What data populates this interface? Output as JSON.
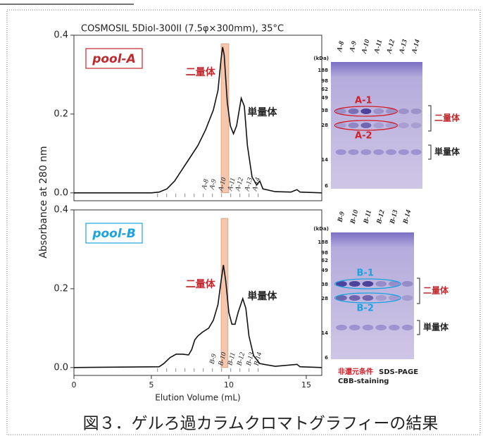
{
  "chart_data": [
    {
      "type": "line",
      "title": "COSMOSIL 5Diol-300II (7.5φ×300mm), 35°C",
      "ylabel": "Absorbance at 280 nm",
      "panel_label": "pool-A",
      "panel_color": "#c0282d",
      "xlim": [
        0,
        16
      ],
      "ylim": [
        -0.02,
        0.4
      ],
      "yticks": [
        {
          "value": 0,
          "label": "0.0"
        },
        0.2,
        0.4
      ],
      "x": [
        0,
        5,
        5.5,
        6,
        6.5,
        7,
        7.5,
        8,
        8.5,
        9,
        9.3,
        9.5,
        9.6,
        9.7,
        9.9,
        10.1,
        10.3,
        10.5,
        10.8,
        11.0,
        11.2,
        11.5,
        11.8,
        12.0,
        12.2,
        13,
        14,
        14.4,
        14.6,
        16
      ],
      "values": [
        0,
        0,
        0.002,
        0.01,
        0.03,
        0.06,
        0.09,
        0.12,
        0.16,
        0.21,
        0.26,
        0.34,
        0.37,
        0.35,
        0.23,
        0.17,
        0.15,
        0.17,
        0.24,
        0.22,
        0.12,
        0.04,
        0.02,
        0.03,
        0.01,
        0.003,
        0.002,
        0.008,
        0.002,
        0
      ],
      "color": "#111111",
      "highlight": [
        9.5,
        10.0
      ],
      "highlight_color": "#f3c6ad",
      "dimer_label": "二量体",
      "monomer_label": "単量体",
      "fractions": {
        "labels": [
          "A-8",
          "A-9",
          "A-10",
          "A-11",
          "A-12",
          "A-13",
          "A-14"
        ],
        "x": [
          8.5,
          9.0,
          9.6,
          10.2,
          10.7,
          11.3,
          11.8
        ]
      }
    },
    {
      "type": "line",
      "xlabel": "Elution Volume (mL)",
      "panel_label": "pool-B",
      "panel_color": "#1aa3e0",
      "xlim": [
        0,
        16
      ],
      "ylim": [
        -0.02,
        0.4
      ],
      "xticks": [
        0,
        5,
        10,
        15
      ],
      "yticks": [
        {
          "value": 0,
          "label": "0.0"
        },
        0.2,
        0.4
      ],
      "x": [
        0,
        5.5,
        5.8,
        6.2,
        6.6,
        7,
        7.4,
        7.6,
        7.8,
        8.0,
        8.3,
        8.7,
        9.0,
        9.3,
        9.5,
        9.65,
        9.8,
        10.0,
        10.2,
        10.4,
        10.6,
        10.9,
        11.1,
        11.3,
        11.6,
        12.0,
        13,
        14.4,
        14.6,
        16
      ],
      "values": [
        0,
        0.002,
        0.01,
        0.025,
        0.034,
        0.034,
        0.032,
        0.045,
        0.07,
        0.08,
        0.09,
        0.1,
        0.12,
        0.16,
        0.22,
        0.26,
        0.22,
        0.14,
        0.11,
        0.11,
        0.14,
        0.175,
        0.15,
        0.08,
        0.03,
        0.01,
        0.003,
        0.008,
        0.002,
        0
      ],
      "color": "#111111",
      "highlight": [
        9.5,
        9.95
      ],
      "highlight_color": "#f3c6ad",
      "dimer_label": "二量体",
      "monomer_label": "単量体",
      "fractions": {
        "labels": [
          "B-9",
          "B-10",
          "B-11",
          "B-12",
          "B-13",
          "B-14"
        ],
        "x": [
          9.0,
          9.6,
          10.2,
          10.8,
          11.4,
          11.9
        ]
      }
    }
  ],
  "gels": [
    {
      "lanes": [
        "A-8",
        "A-9",
        "A-10",
        "A-11",
        "A-12",
        "A-13",
        "A-14"
      ],
      "kda_label": "(kDa)",
      "mw": [
        "188",
        "98",
        "62",
        "49",
        "38",
        "28",
        "14",
        "6"
      ],
      "bands": [
        "A-1",
        "A-2"
      ],
      "band_color": "#d0202a",
      "dimer_label": "二量体",
      "monomer_label": "単量体"
    },
    {
      "lanes": [
        "B-9",
        "B-10",
        "B-11",
        "B-12",
        "B-13",
        "B-14"
      ],
      "kda_label": "(kDa)",
      "mw": [
        "188",
        "98",
        "62",
        "49",
        "38",
        "28",
        "14",
        "6"
      ],
      "bands": [
        "B-1",
        "B-2"
      ],
      "band_color": "#1aa3e0",
      "dimer_label": "二量体",
      "monomer_label": "単量体"
    }
  ],
  "conditions": {
    "line1_red": "非還元条件",
    "line1_black": "SDS-PAGE",
    "line2": "CBB-staining"
  },
  "caption": "図３．ゲルろ過カラムクロマトグラフィーの結果"
}
